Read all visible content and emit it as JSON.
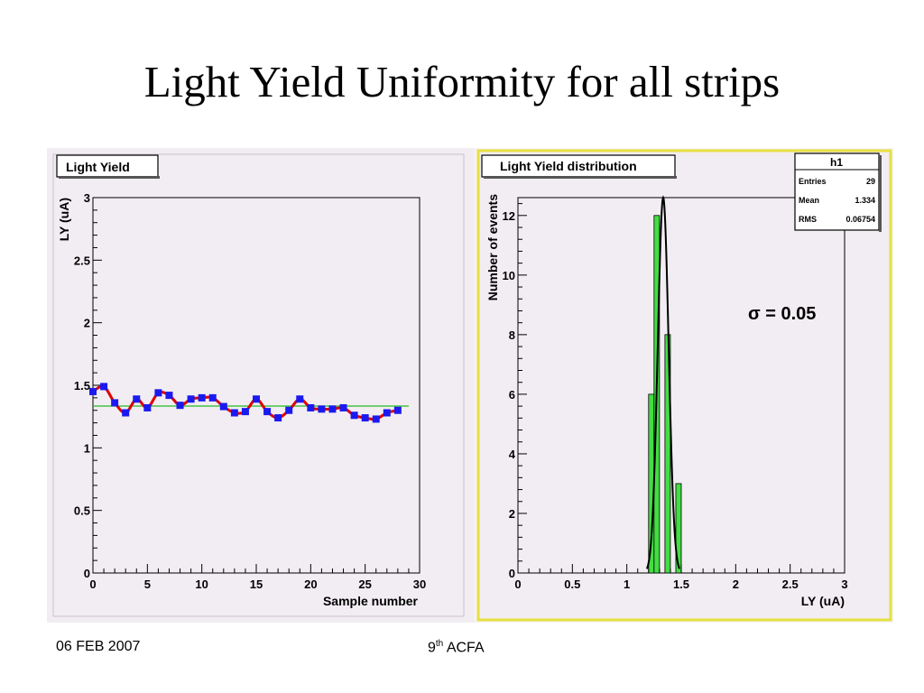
{
  "slide": {
    "title": "Light Yield Uniformity for all strips",
    "footer_date": "06 FEB 2007",
    "footer_event_ordinal": "9",
    "footer_event_suffix": "th",
    "footer_event_name": "ACFA"
  },
  "colors": {
    "pad_background": "#f2edf2",
    "frame_highlight": "#e6e040",
    "marker": "#1a1af0",
    "line": "#e00000",
    "fit_line": "#22bb22",
    "histogram_fill": "#44dd44",
    "gauss_curve": "#000000"
  },
  "chart_data": [
    {
      "type": "scatter",
      "title": "Light Yield",
      "xlabel": "Sample number",
      "ylabel": "LY (uA)",
      "xlim": [
        0,
        30
      ],
      "ylim": [
        0,
        3
      ],
      "x_ticks": [
        "0",
        "5",
        "10",
        "15",
        "20",
        "25",
        "30"
      ],
      "y_ticks": [
        "0",
        "0.5",
        "1",
        "1.5",
        "2",
        "2.5",
        "3"
      ],
      "grid": false,
      "marker_style": "blue squares joined by red smooth curve",
      "x": [
        0,
        1,
        2,
        3,
        4,
        5,
        6,
        7,
        8,
        9,
        10,
        11,
        12,
        13,
        14,
        15,
        16,
        17,
        18,
        19,
        20,
        21,
        22,
        23,
        24,
        25,
        26,
        27,
        28
      ],
      "y": [
        1.45,
        1.49,
        1.36,
        1.28,
        1.39,
        1.32,
        1.44,
        1.42,
        1.34,
        1.39,
        1.4,
        1.4,
        1.33,
        1.28,
        1.29,
        1.39,
        1.29,
        1.24,
        1.3,
        1.39,
        1.32,
        1.31,
        1.31,
        1.32,
        1.26,
        1.24,
        1.23,
        1.28,
        1.3
      ],
      "fit_line_y": 1.334
    },
    {
      "type": "bar",
      "title": "Light Yield distribution",
      "xlabel": "LY (uA)",
      "ylabel": "Number of events",
      "xlim": [
        0,
        3
      ],
      "ylim": [
        0,
        12.6
      ],
      "x_ticks": [
        "0",
        "0.5",
        "1",
        "1.5",
        "2",
        "2.5",
        "3"
      ],
      "y_ticks": [
        "0",
        "2",
        "4",
        "6",
        "8",
        "10",
        "12"
      ],
      "grid": false,
      "bins": [
        {
          "low": 1.2,
          "high": 1.25,
          "count": 6
        },
        {
          "low": 1.25,
          "high": 1.3,
          "count": 12
        },
        {
          "low": 1.3,
          "high": 1.35,
          "count": 0
        },
        {
          "low": 1.35,
          "high": 1.4,
          "count": 8
        },
        {
          "low": 1.4,
          "high": 1.45,
          "count": 0
        },
        {
          "low": 1.45,
          "high": 1.5,
          "count": 3
        }
      ],
      "gauss_fit": {
        "mean": 1.334,
        "sigma": 0.05,
        "peak": 12.6
      },
      "annotation": "σ = 0.05",
      "stats_box": {
        "title": "h1",
        "rows": [
          {
            "label": "Entries",
            "value": "29"
          },
          {
            "label": "Mean",
            "value": "1.334"
          },
          {
            "label": "RMS",
            "value": "0.06754"
          }
        ]
      }
    }
  ]
}
